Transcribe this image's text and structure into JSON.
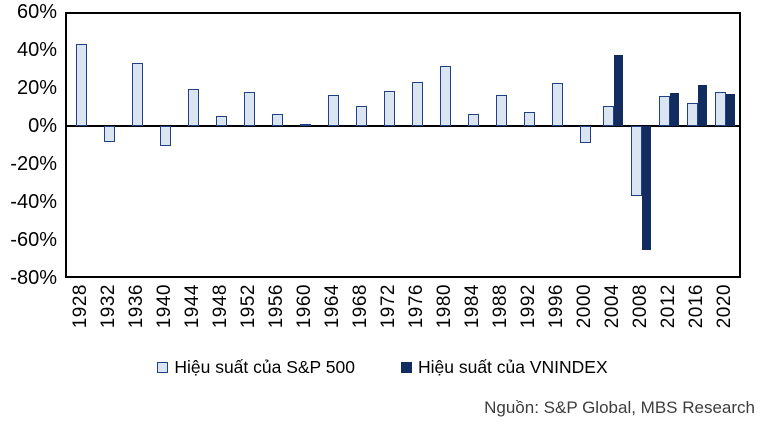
{
  "chart_data": {
    "type": "bar",
    "title": "",
    "categories": [
      "1928",
      "1932",
      "1936",
      "1940",
      "1944",
      "1948",
      "1952",
      "1956",
      "1960",
      "1964",
      "1968",
      "1972",
      "1976",
      "1980",
      "1984",
      "1988",
      "1992",
      "1996",
      "2000",
      "2004",
      "2008",
      "2012",
      "2016",
      "2020"
    ],
    "series": [
      {
        "name": "Hiệu suất của S&P 500",
        "fill": "#dbe5f1",
        "border": "#1f4185",
        "values": [
          44,
          -8.5,
          33.9,
          -10.5,
          19.7,
          5.5,
          18.4,
          6.6,
          0.5,
          16.5,
          11.1,
          19,
          23.8,
          32.4,
          6.3,
          16.8,
          7.6,
          23,
          -9.1,
          10.9,
          -37,
          16,
          12.3,
          18.4
        ]
      },
      {
        "name": "Hiệu suất của VNINDEX",
        "fill": "#122c5f",
        "border": "#122c5f",
        "values": [
          null,
          null,
          null,
          null,
          null,
          null,
          null,
          null,
          null,
          null,
          null,
          null,
          null,
          null,
          null,
          null,
          null,
          null,
          null,
          38,
          -66,
          17.7,
          22,
          17.5
        ]
      }
    ],
    "ylim": [
      -80,
      60
    ],
    "yticks": [
      {
        "label": "60%",
        "value": 60
      },
      {
        "label": "40%",
        "value": 40
      },
      {
        "label": "20%",
        "value": 20
      },
      {
        "label": "0%",
        "value": 0
      },
      {
        "label": "-20%",
        "value": -20
      },
      {
        "label": "-40%",
        "value": -40
      },
      {
        "label": "-60%",
        "value": -60
      },
      {
        "label": "-80%",
        "value": -80
      }
    ],
    "grid": false,
    "legend_position": "bottom",
    "axis_color": "#000000",
    "background": "#ffffff"
  },
  "source_note": "Nguồn: S&P Global, MBS Research"
}
